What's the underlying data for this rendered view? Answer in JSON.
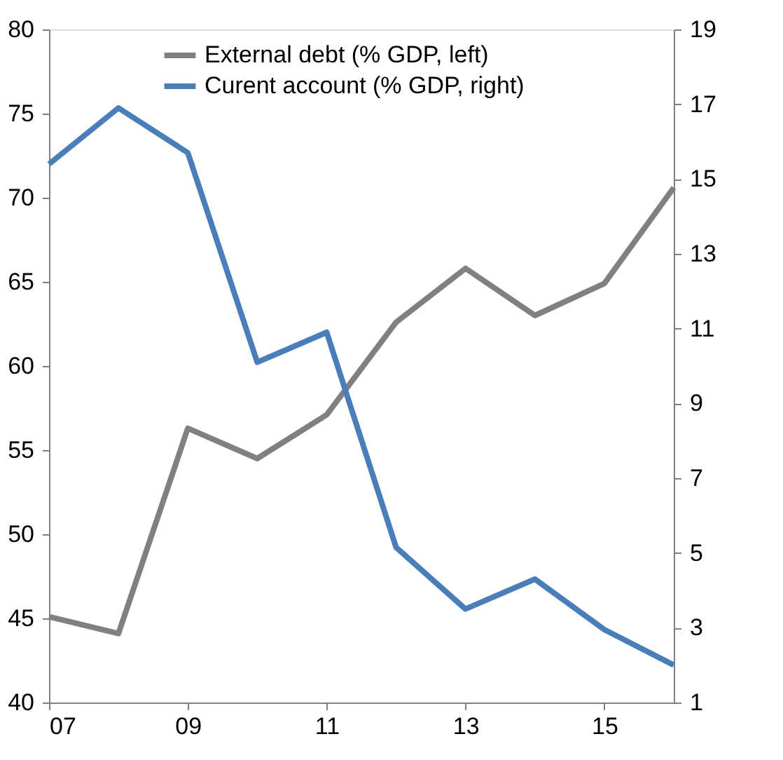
{
  "chart_data": {
    "type": "line",
    "x": [
      2007,
      2008,
      2009,
      2010,
      2011,
      2012,
      2013,
      2014,
      2015,
      2016
    ],
    "series": [
      {
        "name": "External debt (% GDP, left)",
        "color": "#808080",
        "values": [
          45.1,
          44.1,
          56.3,
          54.5,
          57.1,
          62.6,
          65.8,
          63.0,
          64.9,
          70.6
        ]
      },
      {
        "name": "Curent account (% GDP, right)",
        "color": "#4a7ebb",
        "axis": "y2",
        "values": [
          15.4,
          16.9,
          15.7,
          10.1,
          10.9,
          5.15,
          3.5,
          4.3,
          2.95,
          2.0
        ]
      }
    ],
    "xlim": [
      2007,
      2016
    ],
    "xticks": [
      {
        "value": 2007,
        "label": "07"
      },
      {
        "value": 2009,
        "label": "09"
      },
      {
        "value": 2011,
        "label": "11"
      },
      {
        "value": 2013,
        "label": "13"
      },
      {
        "value": 2015,
        "label": "15"
      }
    ],
    "ylim": [
      40,
      80
    ],
    "yticks": [
      40,
      45,
      50,
      55,
      60,
      65,
      70,
      75,
      80
    ],
    "y2lim": [
      1,
      19
    ],
    "y2ticks": [
      1,
      3,
      5,
      7,
      9,
      11,
      13,
      15,
      17,
      19
    ],
    "legend": "top",
    "grid": false,
    "line_style": "solid",
    "marker": "none"
  }
}
